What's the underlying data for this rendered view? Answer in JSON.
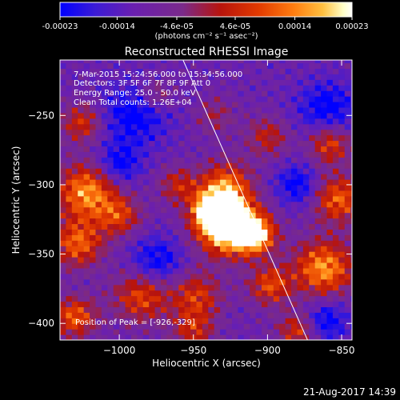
{
  "colorbar": {
    "tick_labels": [
      "-0.00023",
      "-0.00014",
      "-4.6e-05",
      "4.6e-05",
      "0.00014",
      "0.00023"
    ],
    "tick_values": [
      -0.00023,
      -0.00014,
      -4.6e-05,
      4.6e-05,
      0.00014,
      0.00023
    ],
    "range": [
      -0.00023,
      0.00023
    ],
    "units_label": "(photons cm⁻² s⁻¹ asec⁻²)",
    "colors": [
      "#0000ff",
      "#3b1bd6",
      "#6a1fb0",
      "#7a2a8a",
      "#b8140c",
      "#e23a00",
      "#ff7d10",
      "#ffc040",
      "#ffffc8",
      "#ffffff"
    ]
  },
  "chart_data": {
    "type": "heatmap",
    "title": "Reconstructed RHESSI Image",
    "xlabel": "Heliocentric X (arcsec)",
    "ylabel": "Heliocentric Y (arcsec)",
    "xlim": [
      -1040,
      -843
    ],
    "ylim": [
      -412,
      -210
    ],
    "x_ticks": [
      -1000,
      -950,
      -900,
      -850
    ],
    "x_tick_labels": [
      "−1000",
      "−950",
      "−900",
      "−850"
    ],
    "y_ticks": [
      -400,
      -350,
      -300,
      -250
    ],
    "y_tick_labels": [
      "−400",
      "−350",
      "−300",
      "−250"
    ],
    "info_lines": [
      "7-Mar-2015 15:24:56.000 to 15:34:56.000",
      "Detectors: 3F 5F 6F 7F 8F 9F  Att 0",
      "Energy Range: 25.0 - 50.0 keV",
      "Clean     Total counts: 1.26E+04"
    ],
    "peak_label": "Position of Peak = [-926,-329]",
    "peak": [
      -926,
      -329
    ],
    "limb_line": [
      [
        -957,
        -210
      ],
      [
        -873,
        -412
      ]
    ],
    "grid": false
  },
  "footer": {
    "timestamp": "21-Aug-2017 14:39"
  }
}
